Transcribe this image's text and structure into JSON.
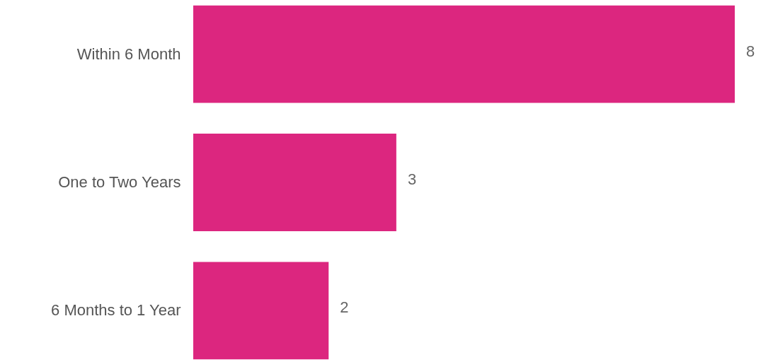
{
  "chart_data": {
    "type": "bar",
    "orientation": "horizontal",
    "categories": [
      "Within 6 Month",
      "One to Two Years",
      "6 Months to 1 Year"
    ],
    "values": [
      8,
      3,
      2
    ],
    "color": "#dc267f",
    "data_labels": true
  }
}
